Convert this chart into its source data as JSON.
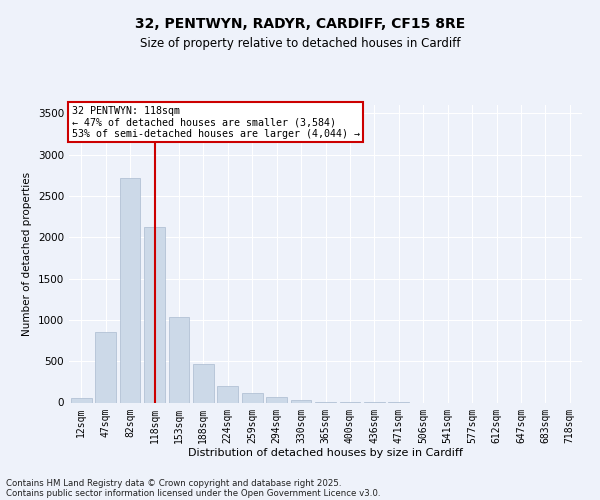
{
  "title_line1": "32, PENTWYN, RADYR, CARDIFF, CF15 8RE",
  "title_line2": "Size of property relative to detached houses in Cardiff",
  "xlabel": "Distribution of detached houses by size in Cardiff",
  "ylabel": "Number of detached properties",
  "categories": [
    "12sqm",
    "47sqm",
    "82sqm",
    "118sqm",
    "153sqm",
    "188sqm",
    "224sqm",
    "259sqm",
    "294sqm",
    "330sqm",
    "365sqm",
    "400sqm",
    "436sqm",
    "471sqm",
    "506sqm",
    "541sqm",
    "577sqm",
    "612sqm",
    "647sqm",
    "683sqm",
    "718sqm"
  ],
  "values": [
    50,
    850,
    2720,
    2120,
    1040,
    460,
    200,
    110,
    70,
    30,
    10,
    5,
    2,
    1,
    0,
    0,
    0,
    0,
    0,
    0,
    0
  ],
  "bar_color": "#ccd9e8",
  "bar_edge_color": "#aabbd0",
  "vline_x_index": 3,
  "vline_color": "#cc0000",
  "annotation_text": "32 PENTWYN: 118sqm\n← 47% of detached houses are smaller (3,584)\n53% of semi-detached houses are larger (4,044) →",
  "annotation_box_color": "#ffffff",
  "annotation_box_edge_color": "#cc0000",
  "ylim": [
    0,
    3600
  ],
  "yticks": [
    0,
    500,
    1000,
    1500,
    2000,
    2500,
    3000,
    3500
  ],
  "footer_line1": "Contains HM Land Registry data © Crown copyright and database right 2025.",
  "footer_line2": "Contains public sector information licensed under the Open Government Licence v3.0.",
  "background_color": "#eef2fa",
  "grid_color": "#ffffff"
}
